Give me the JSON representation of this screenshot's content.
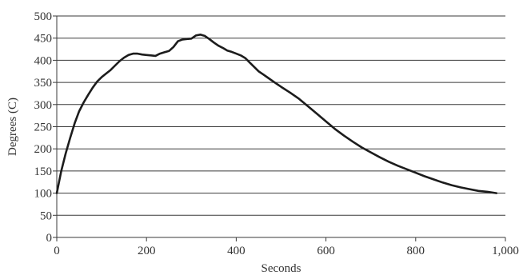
{
  "chart_data": {
    "type": "line",
    "title": "",
    "xlabel": "Seconds",
    "ylabel": "Degrees (C)",
    "xlim": [
      0,
      1000
    ],
    "ylim": [
      0,
      500
    ],
    "x_ticks": [
      0,
      200,
      400,
      600,
      800,
      1000
    ],
    "x_tick_labels": [
      "0",
      "200",
      "400",
      "600",
      "800",
      "1,000"
    ],
    "y_ticks": [
      0,
      50,
      100,
      150,
      200,
      250,
      300,
      350,
      400,
      450,
      500
    ],
    "y_tick_labels": [
      "0",
      "50",
      "100",
      "150",
      "200",
      "250",
      "300",
      "350",
      "400",
      "450",
      "500"
    ],
    "grid": "horizontal",
    "legend": "none",
    "line_color": "#1c1c1c",
    "series": [
      {
        "x": [
          0,
          10,
          20,
          30,
          40,
          50,
          60,
          70,
          80,
          90,
          100,
          110,
          120,
          130,
          140,
          150,
          160,
          170,
          180,
          190,
          200,
          210,
          220,
          230,
          240,
          250,
          260,
          270,
          280,
          290,
          300,
          310,
          320,
          330,
          340,
          350,
          360,
          370,
          380,
          390,
          400,
          410,
          420,
          430,
          440,
          450,
          460,
          470,
          480,
          490,
          500,
          520,
          540,
          560,
          580,
          600,
          620,
          640,
          660,
          680,
          700,
          720,
          740,
          760,
          780,
          800,
          820,
          840,
          860,
          880,
          900,
          920,
          940,
          960,
          980
        ],
        "values": [
          100,
          150,
          190,
          225,
          258,
          285,
          305,
          322,
          338,
          352,
          362,
          370,
          378,
          388,
          398,
          406,
          412,
          415,
          415,
          413,
          412,
          411,
          410,
          415,
          418,
          421,
          430,
          443,
          447,
          448,
          449,
          456,
          458,
          455,
          448,
          440,
          433,
          428,
          422,
          419,
          415,
          411,
          405,
          395,
          385,
          375,
          368,
          361,
          354,
          347,
          340,
          327,
          313,
          296,
          279,
          262,
          245,
          230,
          216,
          203,
          192,
          181,
          171,
          162,
          154,
          146,
          138,
          131,
          124,
          118,
          113,
          109,
          105,
          103,
          100
        ]
      }
    ]
  }
}
